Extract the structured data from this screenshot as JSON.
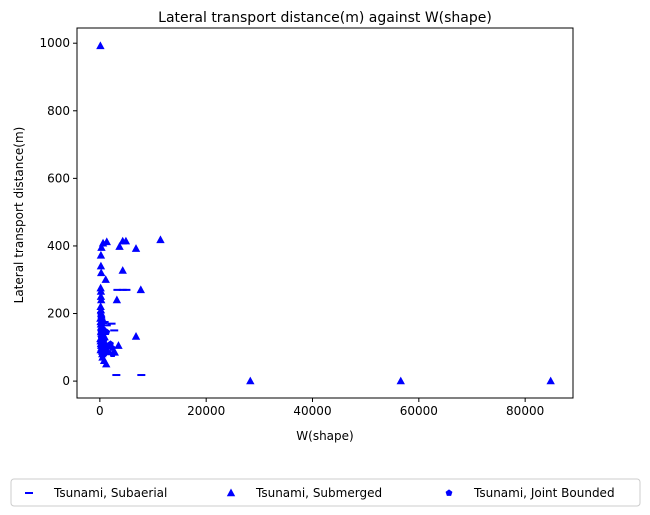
{
  "chart_data": {
    "type": "scatter",
    "title": "Lateral transport distance(m) against W(shape)",
    "xlabel": "W(shape)",
    "ylabel": "Lateral transport distance(m)",
    "xlim": [
      -4300,
      89000
    ],
    "ylim": [
      -50,
      1045
    ],
    "xticks": [
      0,
      20000,
      40000,
      60000,
      80000
    ],
    "yticks": [
      0,
      200,
      400,
      600,
      800,
      1000
    ],
    "grid": false,
    "legend_position": "bottom",
    "legend_columns": 3,
    "series": [
      {
        "name": "Tsunami, Subaerial",
        "marker": "hline",
        "color": "#0000ff",
        "points": [
          [
            900,
            175
          ],
          [
            1300,
            165
          ],
          [
            2200,
            170
          ],
          [
            2700,
            150
          ],
          [
            3300,
            270
          ],
          [
            4300,
            270
          ],
          [
            5000,
            270
          ],
          [
            3100,
            18
          ],
          [
            7800,
            18
          ],
          [
            300,
            150
          ],
          [
            600,
            120
          ],
          [
            1800,
            110
          ]
        ]
      },
      {
        "name": "Tsunami, Submerged",
        "marker": "triangle",
        "color": "#0000ff",
        "points": [
          [
            100,
            992
          ],
          [
            600,
            408
          ],
          [
            1300,
            412
          ],
          [
            4300,
            414
          ],
          [
            4900,
            414
          ],
          [
            11400,
            418
          ],
          [
            300,
            395
          ],
          [
            200,
            372
          ],
          [
            3700,
            398
          ],
          [
            6800,
            392
          ],
          [
            4300,
            327
          ],
          [
            200,
            340
          ],
          [
            250,
            320
          ],
          [
            1100,
            300
          ],
          [
            150,
            275
          ],
          [
            200,
            265
          ],
          [
            7700,
            270
          ],
          [
            200,
            250
          ],
          [
            250,
            240
          ],
          [
            3200,
            240
          ],
          [
            150,
            220
          ],
          [
            200,
            210
          ],
          [
            250,
            200
          ],
          [
            300,
            195
          ],
          [
            100,
            185
          ],
          [
            150,
            175
          ],
          [
            200,
            168
          ],
          [
            250,
            160
          ],
          [
            300,
            150
          ],
          [
            350,
            140
          ],
          [
            6800,
            132
          ],
          [
            100,
            125
          ],
          [
            150,
            118
          ],
          [
            200,
            110
          ],
          [
            250,
            105
          ],
          [
            3500,
            105
          ],
          [
            300,
            98
          ],
          [
            350,
            95
          ],
          [
            400,
            88
          ],
          [
            2800,
            85
          ],
          [
            450,
            80
          ],
          [
            500,
            70
          ],
          [
            1200,
            50
          ],
          [
            800,
            60
          ],
          [
            28300,
            0
          ],
          [
            56600,
            0
          ],
          [
            84800,
            0
          ],
          [
            150,
            92
          ],
          [
            600,
            112
          ],
          [
            900,
            130
          ],
          [
            200,
            145
          ],
          [
            700,
            178
          ]
        ]
      },
      {
        "name": "Tsunami, Joint Bounded",
        "marker": "pentagon",
        "color": "#0000ff",
        "points": [
          [
            200,
            190
          ],
          [
            400,
            180
          ],
          [
            300,
            165
          ],
          [
            500,
            155
          ],
          [
            250,
            145
          ],
          [
            600,
            135
          ],
          [
            350,
            128
          ],
          [
            800,
            120
          ],
          [
            200,
            112
          ],
          [
            1000,
            108
          ],
          [
            400,
            100
          ],
          [
            700,
            95
          ],
          [
            300,
            88
          ],
          [
            1500,
            85
          ],
          [
            2400,
            80
          ],
          [
            500,
            75
          ],
          [
            1100,
            92
          ],
          [
            2000,
            110
          ],
          [
            100,
            200
          ],
          [
            400,
            170
          ],
          [
            200,
            130
          ],
          [
            800,
            150
          ],
          [
            1300,
            145
          ],
          [
            600,
            100
          ],
          [
            300,
            118
          ],
          [
            900,
            82
          ],
          [
            1700,
            102
          ],
          [
            2300,
            98
          ],
          [
            500,
            140
          ]
        ]
      }
    ]
  }
}
